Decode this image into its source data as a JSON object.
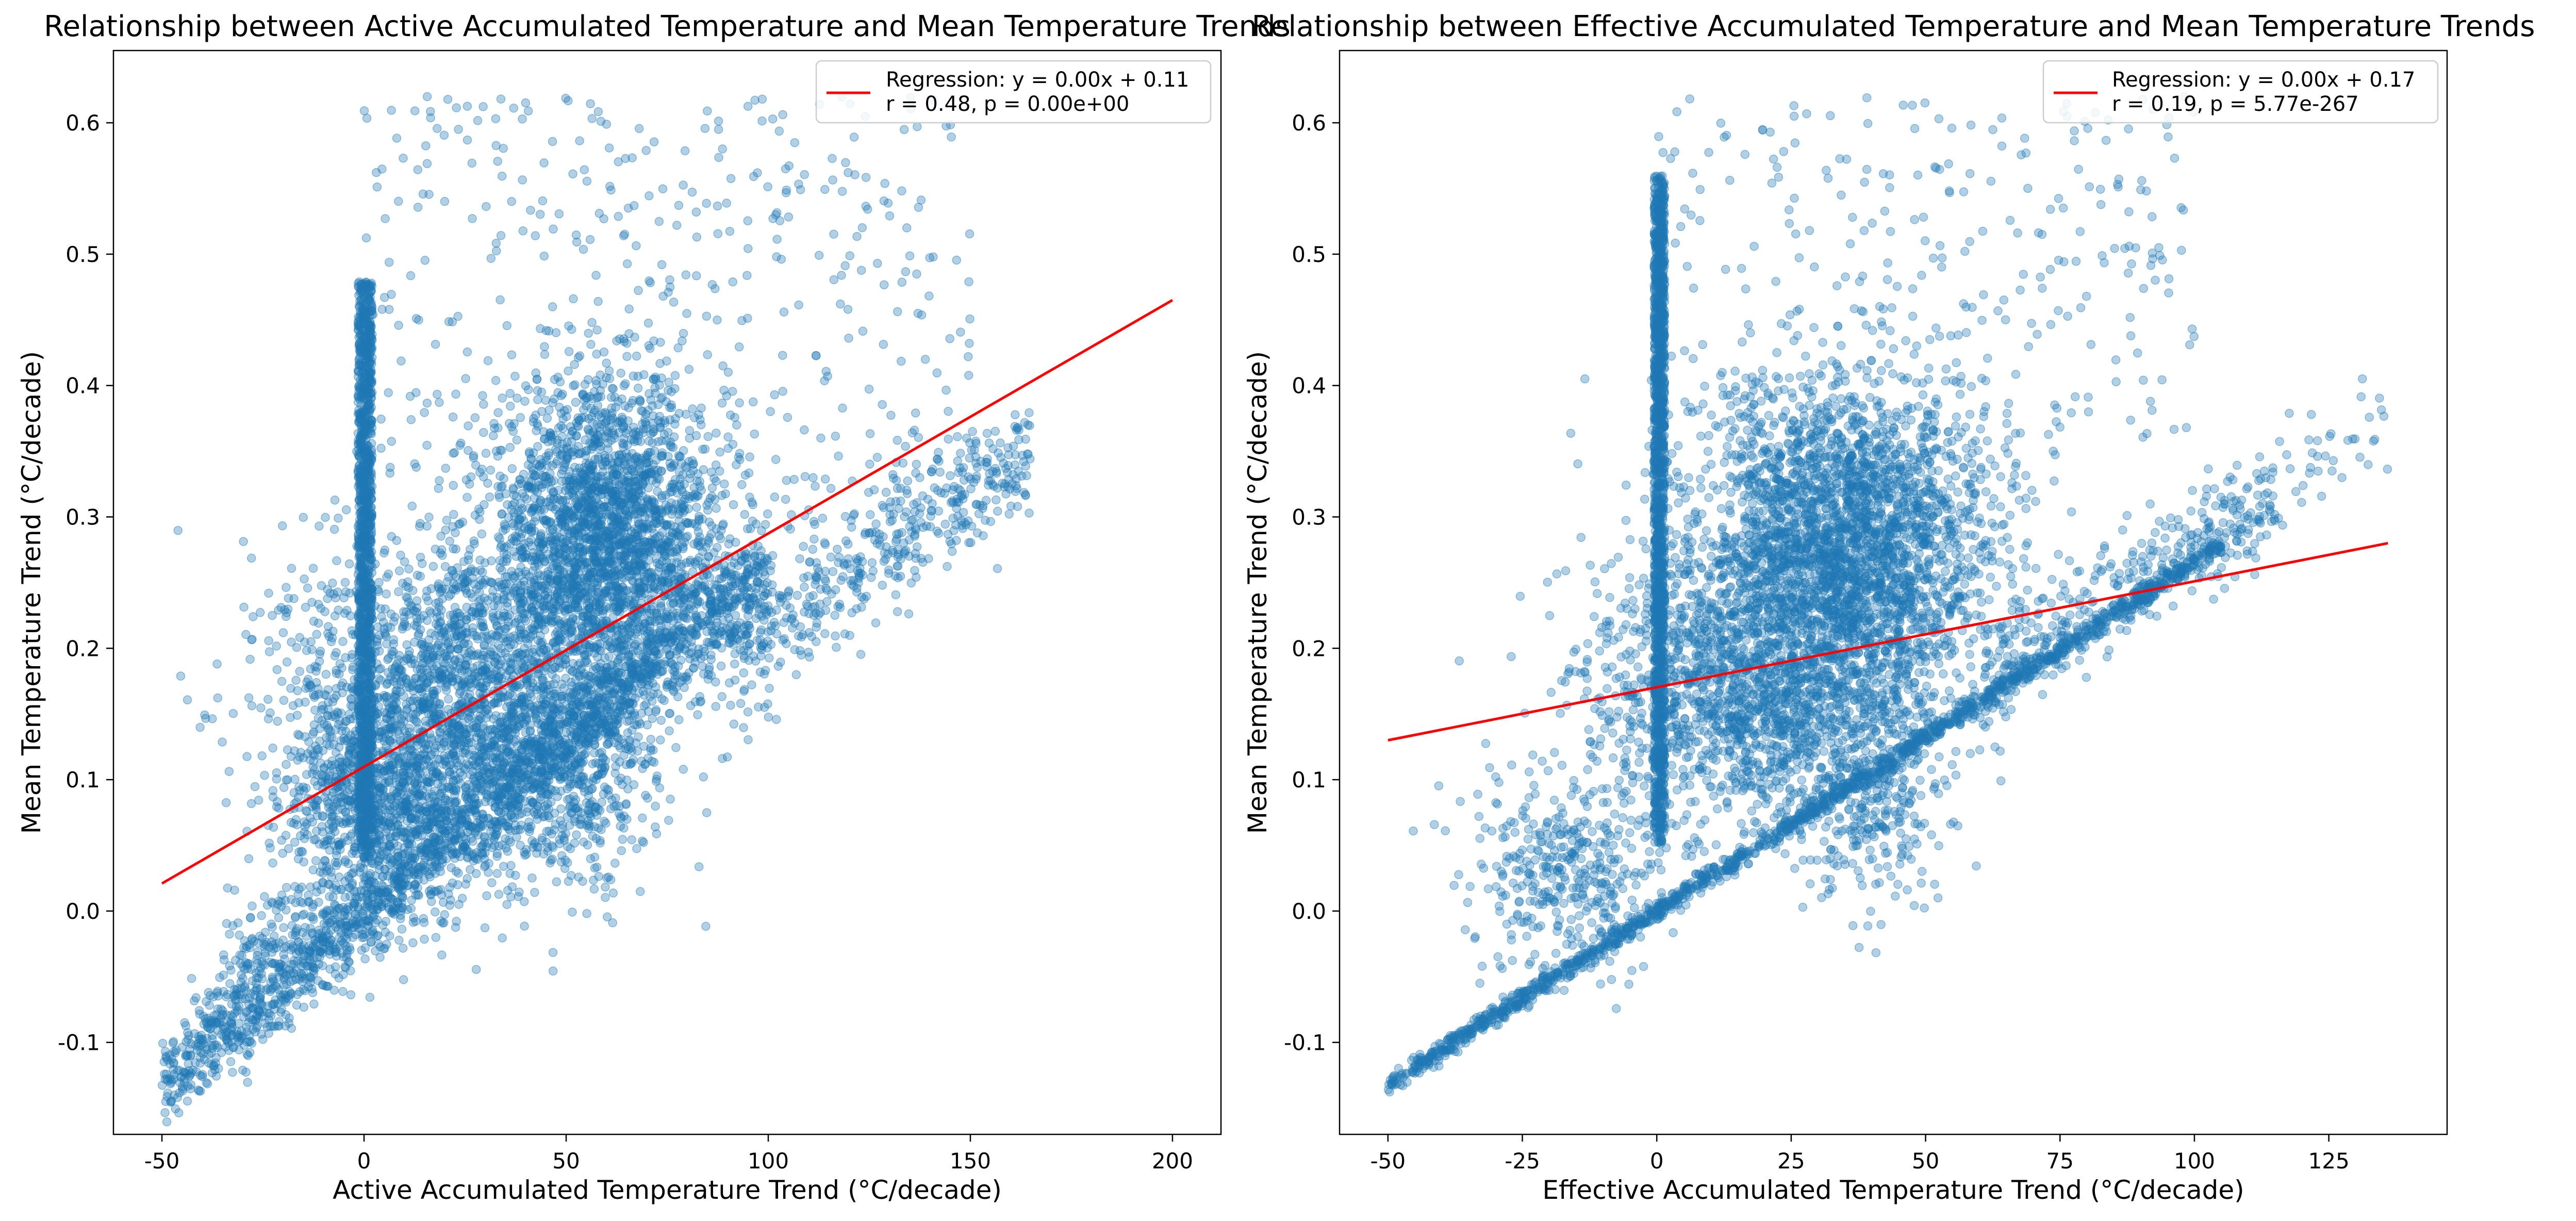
{
  "chart_data": [
    {
      "type": "scatter",
      "title": "Relationship between Active Accumulated Temperature and Mean Temperature Trends",
      "xlabel": "Active Accumulated Temperature Trend (°C/decade)",
      "ylabel": "Mean Temperature Trend (°C/decade)",
      "xlim": [
        -62,
        212
      ],
      "ylim": [
        -0.17,
        0.655
      ],
      "xticks": [
        -50,
        0,
        50,
        100,
        150,
        200
      ],
      "xtick_labels": [
        "-50",
        "0",
        "50",
        "100",
        "150",
        "200"
      ],
      "yticks": [
        -0.1,
        0.0,
        0.1,
        0.2,
        0.3,
        0.4,
        0.5,
        0.6
      ],
      "ytick_labels": [
        "-0.1",
        "0.0",
        "0.1",
        "0.2",
        "0.3",
        "0.4",
        "0.5",
        "0.6"
      ],
      "grid": false,
      "legend_position": "top-right",
      "point_color": "#1f77b4",
      "line_color": "#ff0000",
      "regression": {
        "label_line1": "Regression: y = 0.00x + 0.11",
        "label_line2": "r = 0.48, p = 0.00e+00",
        "x_range": [
          -50,
          200
        ],
        "endpoints": [
          [
            -50,
            0.021
          ],
          [
            200,
            0.465
          ]
        ]
      },
      "point_clusters": [
        {
          "shape": "band",
          "x_range": [
            -50,
            100
          ],
          "slope": 0.00265,
          "intercept": 0.0,
          "noise": 0.018,
          "count": 1800
        },
        {
          "shape": "vbar",
          "x_range": [
            -1.5,
            2
          ],
          "y_range": [
            0.04,
            0.48
          ],
          "count": 1400
        },
        {
          "shape": "blob",
          "center": [
            60,
            0.28
          ],
          "spread": [
            15,
            0.06
          ],
          "count": 2600
        },
        {
          "shape": "blob",
          "center": [
            25,
            0.16
          ],
          "spread": [
            22,
            0.06
          ],
          "count": 2200
        },
        {
          "shape": "blob",
          "center": [
            5,
            0.08
          ],
          "spread": [
            12,
            0.04
          ],
          "count": 900
        },
        {
          "shape": "band",
          "x_range": [
            90,
            165
          ],
          "slope": 0.0021,
          "intercept": 0.005,
          "noise": 0.025,
          "count": 500
        },
        {
          "shape": "scatter",
          "x_range": [
            0,
            150
          ],
          "y_range": [
            0.32,
            0.62
          ],
          "count": 380
        },
        {
          "shape": "band",
          "x_range": [
            -35,
            -10
          ],
          "slope": 0.0025,
          "intercept": 0.04,
          "noise": 0.02,
          "count": 120
        },
        {
          "shape": "blob",
          "center": [
            50,
            0.09
          ],
          "spread": [
            10,
            0.04
          ],
          "count": 300
        }
      ]
    },
    {
      "type": "scatter",
      "title": "Relationship between Effective Accumulated Temperature and Mean Temperature Trends",
      "xlabel": "Effective Accumulated Temperature Trend (°C/decade)",
      "ylabel": "Mean Temperature Trend (°C/decade)",
      "xlim": [
        -59,
        147
      ],
      "ylim": [
        -0.17,
        0.655
      ],
      "xticks": [
        -50,
        -25,
        0,
        25,
        50,
        75,
        100,
        125
      ],
      "xtick_labels": [
        "-50",
        "-25",
        "0",
        "25",
        "50",
        "75",
        "100",
        "125"
      ],
      "yticks": [
        -0.1,
        0.0,
        0.1,
        0.2,
        0.3,
        0.4,
        0.5,
        0.6
      ],
      "ytick_labels": [
        "-0.1",
        "0.0",
        "0.1",
        "0.2",
        "0.3",
        "0.4",
        "0.5",
        "0.6"
      ],
      "grid": false,
      "legend_position": "top-right",
      "point_color": "#1f77b4",
      "line_color": "#ff0000",
      "regression": {
        "label_line1": "Regression: y = 0.00x + 0.17",
        "label_line2": "r = 0.19, p = 5.77e-267",
        "x_range": [
          -50,
          136
        ],
        "endpoints": [
          [
            -50,
            0.13
          ],
          [
            136,
            0.28
          ]
        ]
      },
      "point_clusters": [
        {
          "shape": "band",
          "x_range": [
            -50,
            105
          ],
          "slope": 0.00265,
          "intercept": 0.0,
          "noise": 0.004,
          "count": 1500
        },
        {
          "shape": "vbar",
          "x_range": [
            -0.5,
            1.5
          ],
          "y_range": [
            0.05,
            0.56
          ],
          "count": 1600
        },
        {
          "shape": "blob",
          "center": [
            35,
            0.28
          ],
          "spread": [
            14,
            0.06
          ],
          "count": 2800
        },
        {
          "shape": "blob",
          "center": [
            20,
            0.17
          ],
          "spread": [
            16,
            0.05
          ],
          "count": 1800
        },
        {
          "shape": "blob",
          "center": [
            -15,
            0.03
          ],
          "spread": [
            10,
            0.035
          ],
          "count": 400
        },
        {
          "shape": "band",
          "x_range": [
            60,
            115
          ],
          "slope": 0.0026,
          "intercept": 0.02,
          "noise": 0.02,
          "count": 350
        },
        {
          "shape": "scatter",
          "x_range": [
            0,
            100
          ],
          "y_range": [
            0.35,
            0.62
          ],
          "count": 300
        },
        {
          "shape": "blob",
          "center": [
            40,
            0.08
          ],
          "spread": [
            6,
            0.04
          ],
          "count": 250
        },
        {
          "shape": "band",
          "x_range": [
            100,
            136
          ],
          "slope": 0.0026,
          "intercept": 0.02,
          "noise": 0.02,
          "count": 60
        }
      ]
    }
  ]
}
